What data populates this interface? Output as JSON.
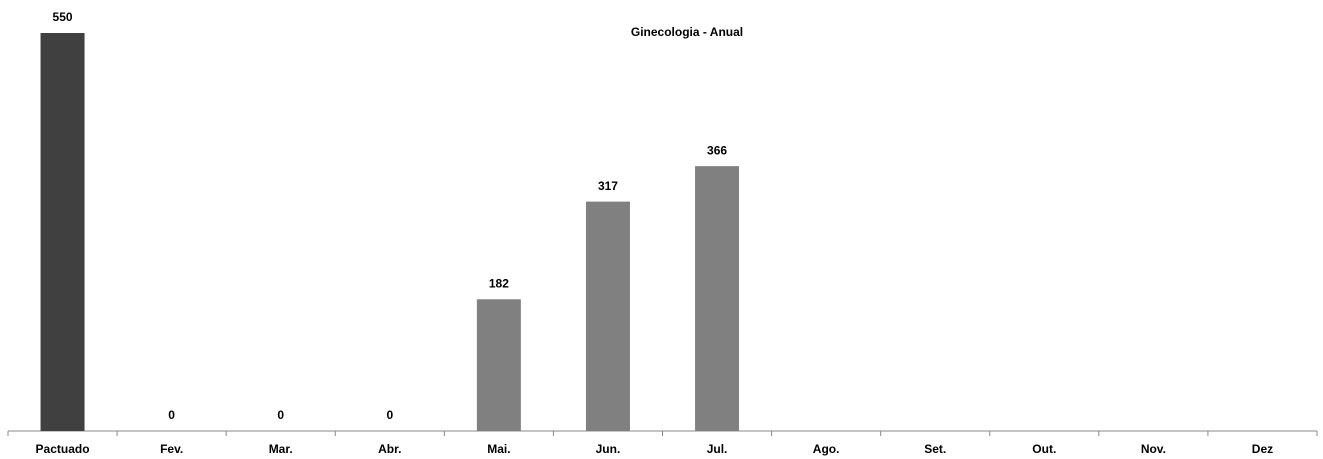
{
  "chart_data": {
    "type": "bar",
    "title": "Ginecologia - Anual",
    "categories": [
      "Pactuado",
      "Fev.",
      "Mar.",
      "Abr.",
      "Mai.",
      "Jun.",
      "Jul.",
      "Ago.",
      "Set.",
      "Out.",
      "Nov.",
      "Dez"
    ],
    "values": [
      550,
      0,
      0,
      0,
      182,
      317,
      366,
      null,
      null,
      null,
      null,
      null
    ],
    "colors": [
      "#404040",
      "#808080",
      "#808080",
      "#808080",
      "#808080",
      "#808080",
      "#808080",
      "#808080",
      "#808080",
      "#808080",
      "#808080",
      "#808080"
    ]
  }
}
